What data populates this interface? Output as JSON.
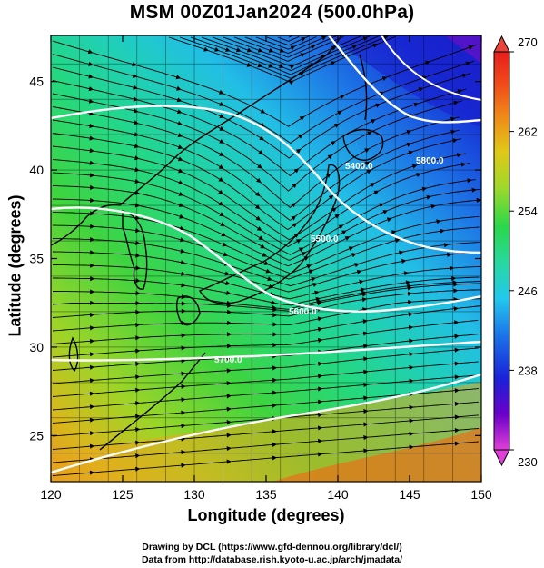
{
  "title": "MSM 00Z01Jan2024 (500.0hPa)",
  "xlabel": "Longitude (degrees)",
  "ylabel": "Latitude  (degrees)",
  "credits": {
    "line1": "Drawing by DCL (https://www.gfd-dennou.org/library/dcl/)",
    "line2": "Data from http://database.rish.kyoto-u.ac.jp/arch/jmadata/"
  },
  "map": {
    "lon_range": [
      120,
      150
    ],
    "lat_range": [
      22.4,
      47.6
    ],
    "lon_ticks": [
      "120",
      "125",
      "130",
      "135",
      "140",
      "145",
      "150"
    ],
    "lat_ticks": [
      "25",
      "30",
      "35",
      "40",
      "45"
    ],
    "grid": true,
    "coastline_color": "#000000"
  },
  "colorbar": {
    "min": 230,
    "max": 270,
    "tick_labels": [
      "270",
      "262",
      "254",
      "246",
      "238",
      "230"
    ],
    "colors": [
      "#e040d8",
      "#6a00c8",
      "#1a22d8",
      "#1a6ee8",
      "#22c8ee",
      "#28d8a0",
      "#28d84a",
      "#a0d82a",
      "#e0c818",
      "#f08818",
      "#f04a18",
      "#e81e1e"
    ]
  },
  "contours": {
    "labels": [
      "5400.0",
      "5700.0",
      "5600.0",
      "5500.0",
      "5800.0"
    ]
  }
}
